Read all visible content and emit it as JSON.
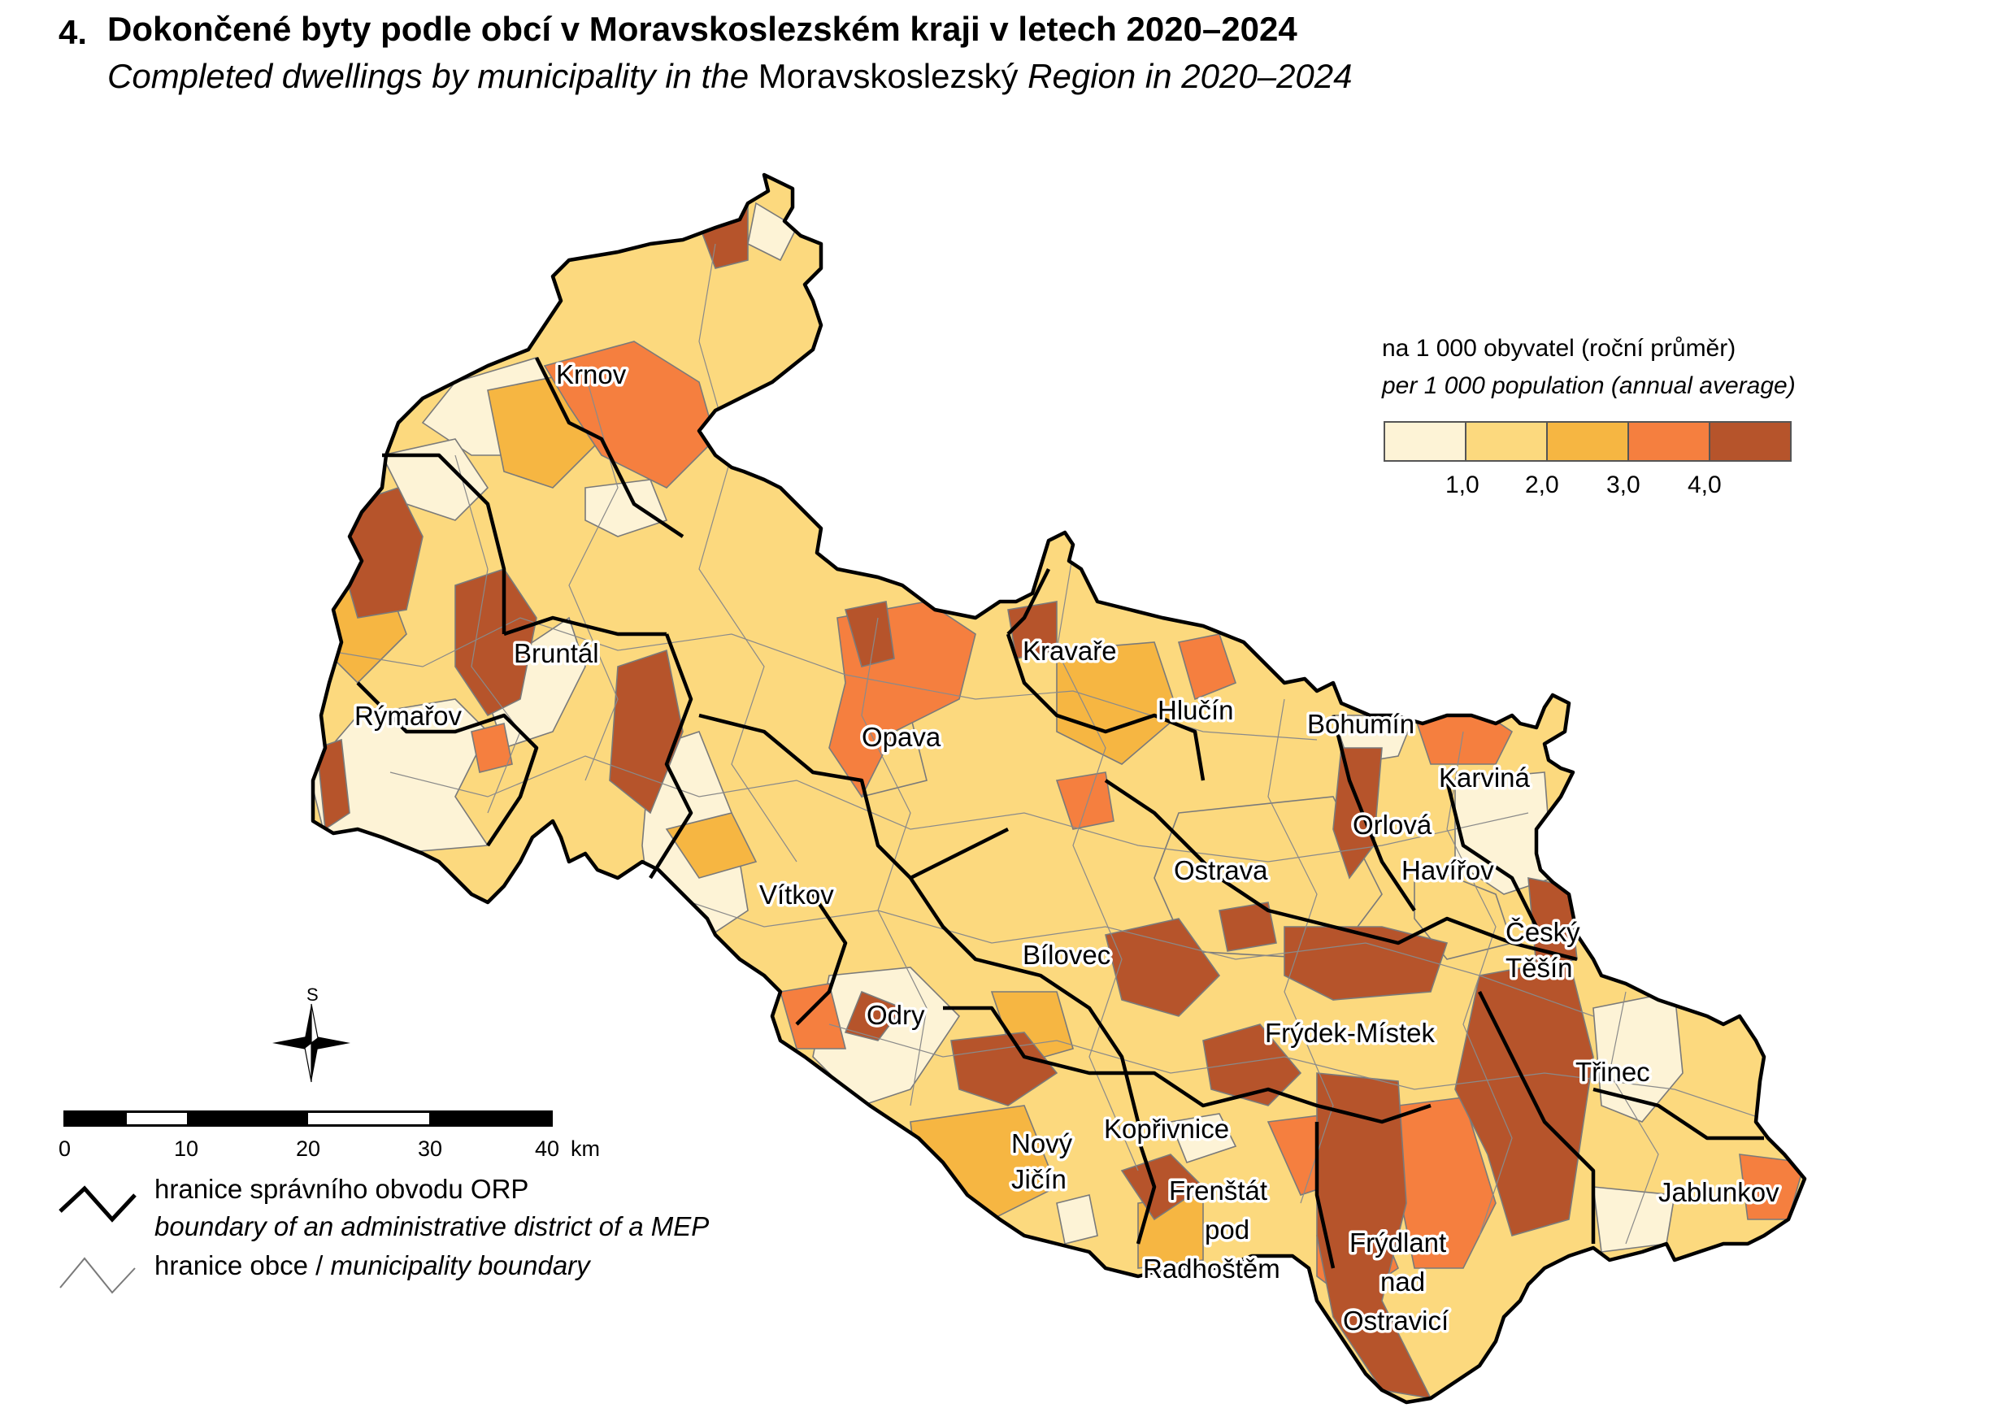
{
  "title": {
    "number": "4.",
    "cz": "Dokončené byty podle obcí v Moravskoslezském kraji v letech 2020–2024",
    "en_italic_1": "Completed dwellings by municipality in the",
    "en_region": "Moravskoslezský",
    "en_italic_2": "Region in 2020–2024"
  },
  "legend": {
    "title_cz": "na 1 000 obyvatel (roční průměr)",
    "title_en": "per 1 000 population (annual average)",
    "class_colors": [
      "#fdf3d6",
      "#fcd97e",
      "#f6b642",
      "#f57f3f",
      "#b6542b"
    ],
    "breaks": [
      "1,0",
      "2,0",
      "3,0",
      "4,0"
    ]
  },
  "towns": [
    "Krnov",
    "Bruntál",
    "Rýmařov",
    "Opava",
    "Kravaře",
    "Hlučín",
    "Bohumín",
    "Karviná",
    "Orlová",
    "Havířov",
    "Ostrava",
    "Český Těšín",
    "Vítkov",
    "Bílovec",
    "Odry",
    "Frýdek-Místek",
    "Třinec",
    "Kopřivnice",
    "Nový Jičín",
    "Frenštát pod Radhoštěm",
    "Frýdlant nad Ostravicí",
    "Jablunkov"
  ],
  "town_lines": {
    "cesky_tesin": [
      "Český",
      "Těšín"
    ],
    "novy_jicin": [
      "Nový",
      "Jičín"
    ],
    "frenstat": [
      "Frenštát",
      "pod",
      "Radhoštěm"
    ],
    "frydlant": [
      "Frýdlant",
      "nad",
      "Ostravicí"
    ]
  },
  "compass": {
    "north_label": "S",
    "icon": "compass-rose-icon"
  },
  "scale": {
    "ticks": [
      "0",
      "10",
      "20",
      "30",
      "40"
    ],
    "unit": "km"
  },
  "line_legend": {
    "orp_cz": "hranice správního obvodu ORP",
    "orp_en": "boundary of an administrative district of a MEP",
    "obec_cz": "hranice obce /",
    "obec_en": "municipality boundary"
  }
}
